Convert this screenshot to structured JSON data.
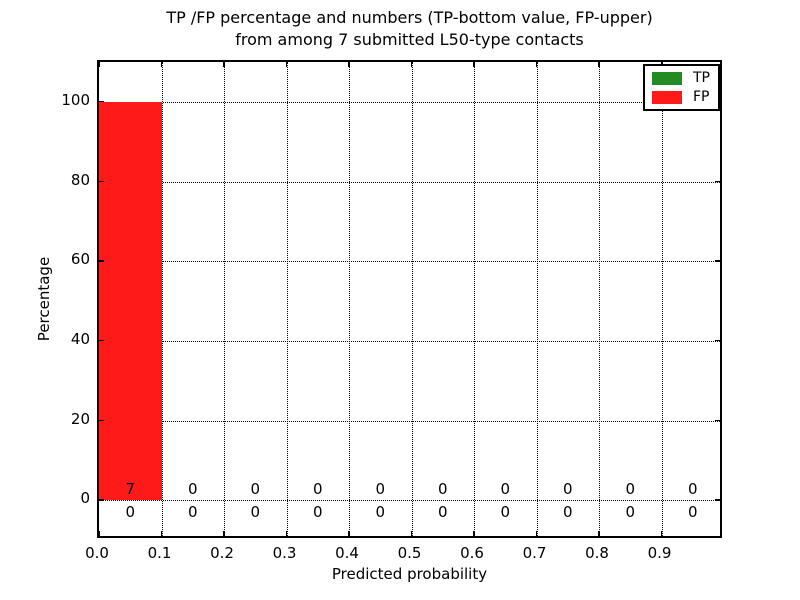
{
  "figure": {
    "title_line1": "TP /FP percentage and numbers (TP-bottom value, FP-upper)",
    "title_line2": "from among 7 submitted L50-type contacts",
    "xlabel": "Predicted probability",
    "ylabel": "Percentage"
  },
  "chart_data": {
    "type": "bar",
    "title": "TP /FP percentage and numbers (TP-bottom value, FP-upper) from among 7 submitted L50-type contacts",
    "xlabel": "Predicted probability",
    "ylabel": "Percentage",
    "xlim": [
      0.0,
      1.0
    ],
    "ylim": [
      -10,
      110
    ],
    "xticks": [
      "0.0",
      "0.1",
      "0.2",
      "0.3",
      "0.4",
      "0.5",
      "0.6",
      "0.7",
      "0.8",
      "0.9"
    ],
    "yticks": [
      0,
      20,
      40,
      60,
      80,
      100
    ],
    "bin_width": 0.1,
    "bin_starts": [
      0.0,
      0.1,
      0.2,
      0.3,
      0.4,
      0.5,
      0.6,
      0.7,
      0.8,
      0.9
    ],
    "grid": true,
    "grid_style": "dotted",
    "legend_position": "upper right",
    "series": [
      {
        "name": "TP",
        "color": "#228b22",
        "percent": [
          0,
          0,
          0,
          0,
          0,
          0,
          0,
          0,
          0,
          0
        ],
        "counts": [
          0,
          0,
          0,
          0,
          0,
          0,
          0,
          0,
          0,
          0
        ],
        "counts_row": "below-zero-line"
      },
      {
        "name": "FP",
        "color": "#ff1a1a",
        "percent": [
          100,
          0,
          0,
          0,
          0,
          0,
          0,
          0,
          0,
          0
        ],
        "counts": [
          7,
          0,
          0,
          0,
          0,
          0,
          0,
          0,
          0,
          0
        ],
        "counts_row": "above-zero-line"
      }
    ]
  }
}
